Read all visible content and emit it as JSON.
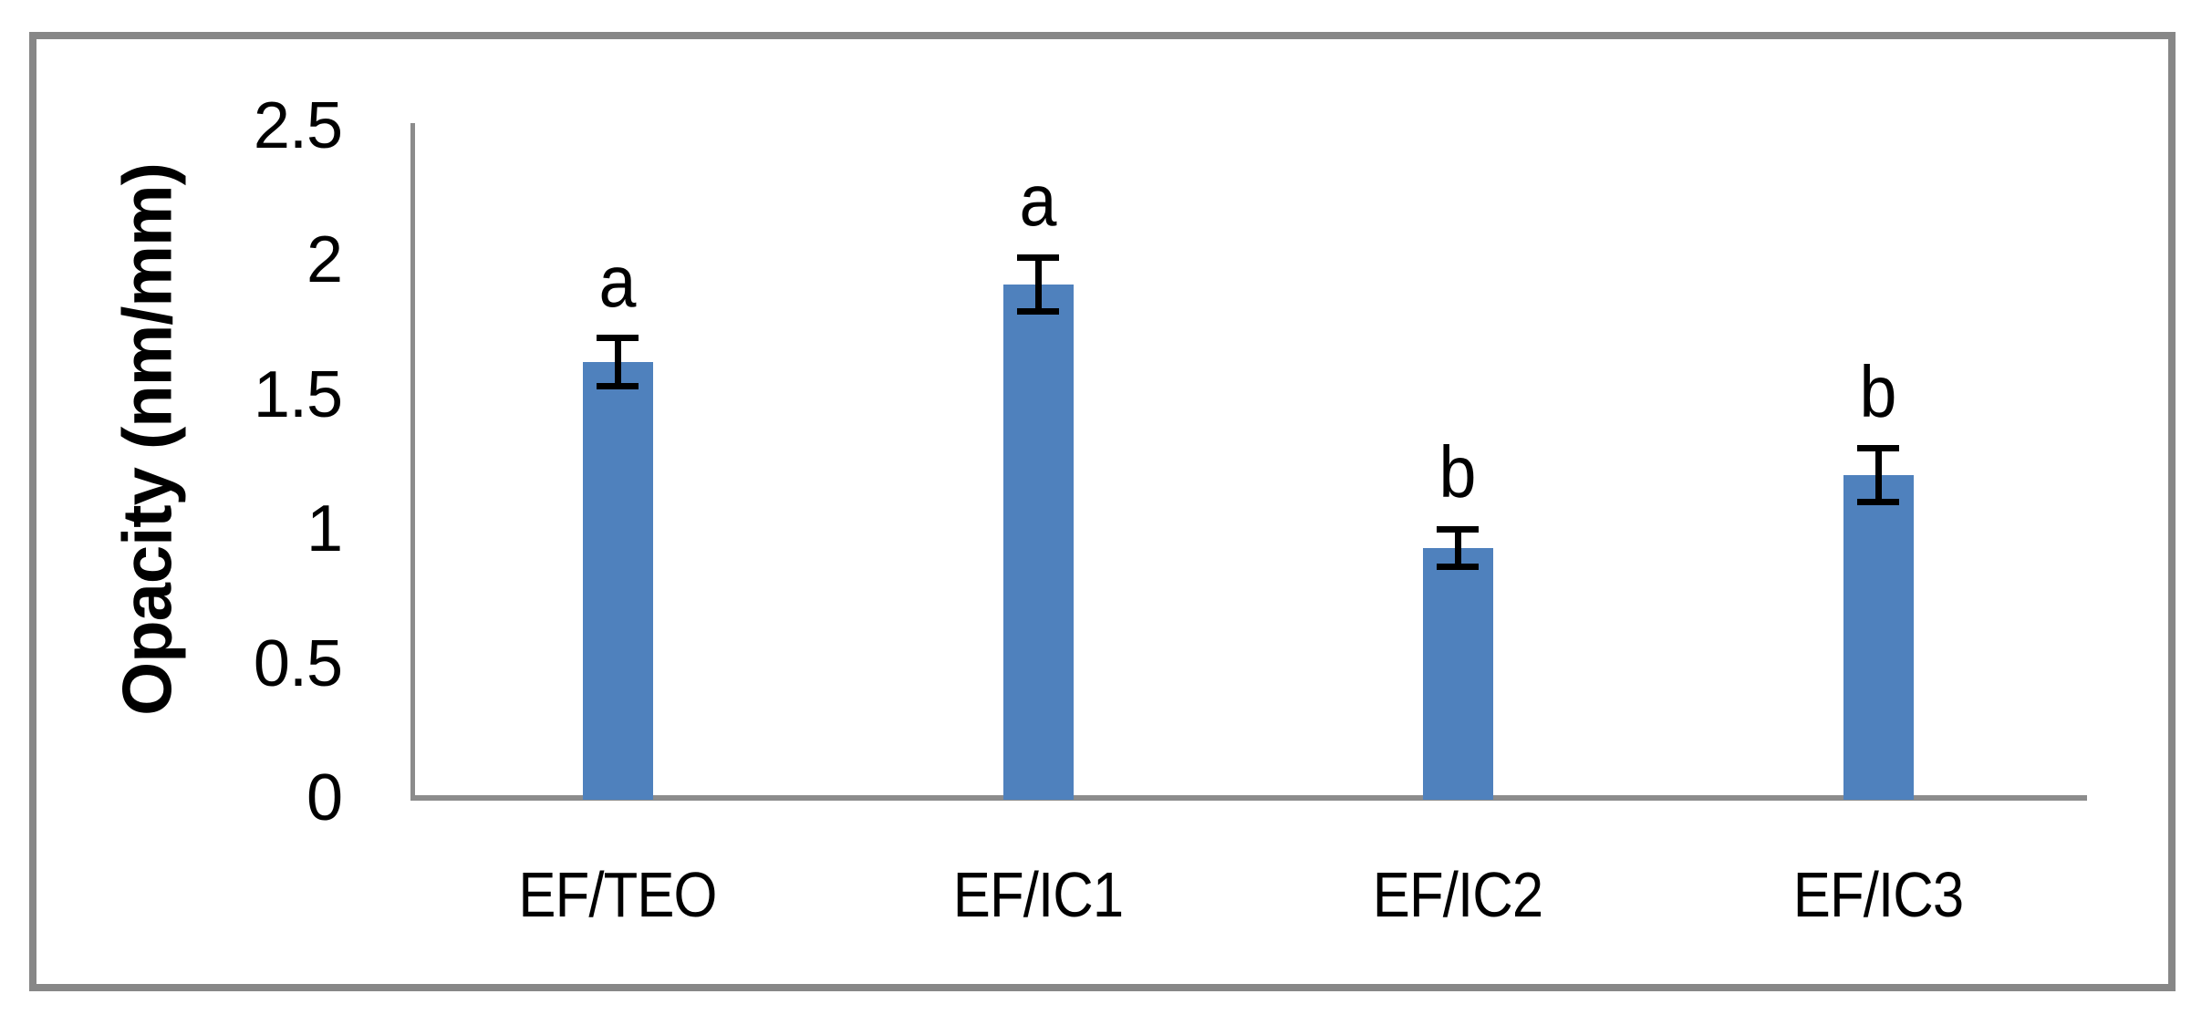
{
  "chart_data": {
    "type": "bar",
    "title": "",
    "xlabel": "",
    "ylabel": "Opacity (nm/mm)",
    "categories": [
      "EF/TEO",
      "EF/IC1",
      "EF/IC2",
      "EF/IC3"
    ],
    "values": [
      1.62,
      1.91,
      0.93,
      1.2
    ],
    "error_bars": [
      0.09,
      0.1,
      0.07,
      0.1
    ],
    "significance_letters": [
      "a",
      "a",
      "b",
      "b"
    ],
    "ytick_labels": [
      "2.5",
      "2",
      "1.5",
      "1",
      "0.5",
      "0"
    ],
    "ylim": [
      0,
      2.5
    ],
    "ytick_step": 0.5,
    "grid": false,
    "legend_position": "none",
    "bar_color": "#4F81BD",
    "axis_line_color": "#8C8C8C",
    "error_bar_color": "#000000",
    "frame_border_color": "#878787",
    "text_color": "#000000"
  }
}
